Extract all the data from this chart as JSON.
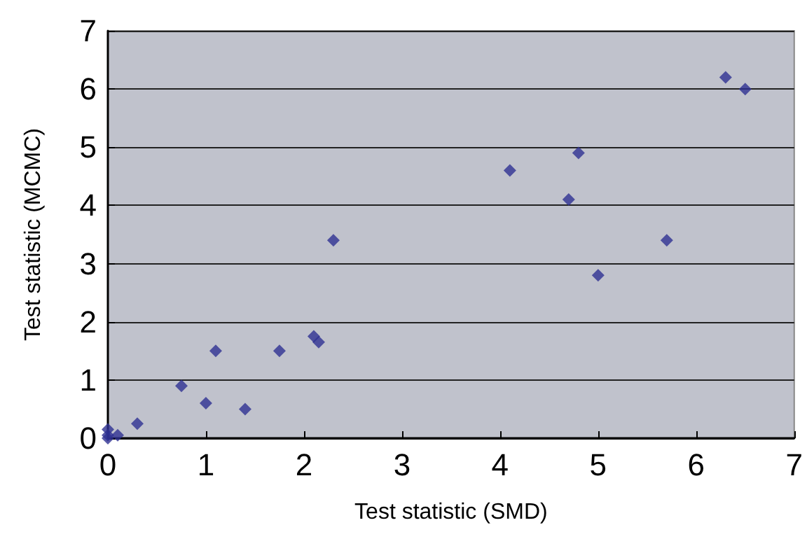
{
  "chart_data": {
    "type": "scatter",
    "xlabel": "Test statistic (SMD)",
    "ylabel": "Test statistic (MCMC)",
    "x": [
      0,
      0,
      0,
      0.1,
      0.3,
      0.75,
      1,
      1.1,
      1.4,
      1.75,
      2.1,
      2.15,
      2.3,
      4.1,
      4.7,
      4.8,
      5,
      5.7,
      6.3,
      6.5
    ],
    "values": [
      0,
      0.05,
      0.15,
      0.05,
      0.25,
      0.9,
      0.6,
      1.5,
      0.5,
      1.5,
      1.75,
      1.65,
      3.4,
      4.6,
      4.1,
      4.9,
      2.8,
      3.4,
      6.2,
      6.0
    ],
    "color": "#2e3192",
    "marker": "diamond",
    "grid": "y",
    "xlim": [
      0,
      7
    ],
    "xticks": [
      0,
      1,
      2,
      3,
      4,
      5,
      6,
      7
    ],
    "ylim": [
      0,
      7
    ],
    "yticks": [
      0,
      1,
      2,
      3,
      4,
      5,
      6,
      7
    ]
  }
}
